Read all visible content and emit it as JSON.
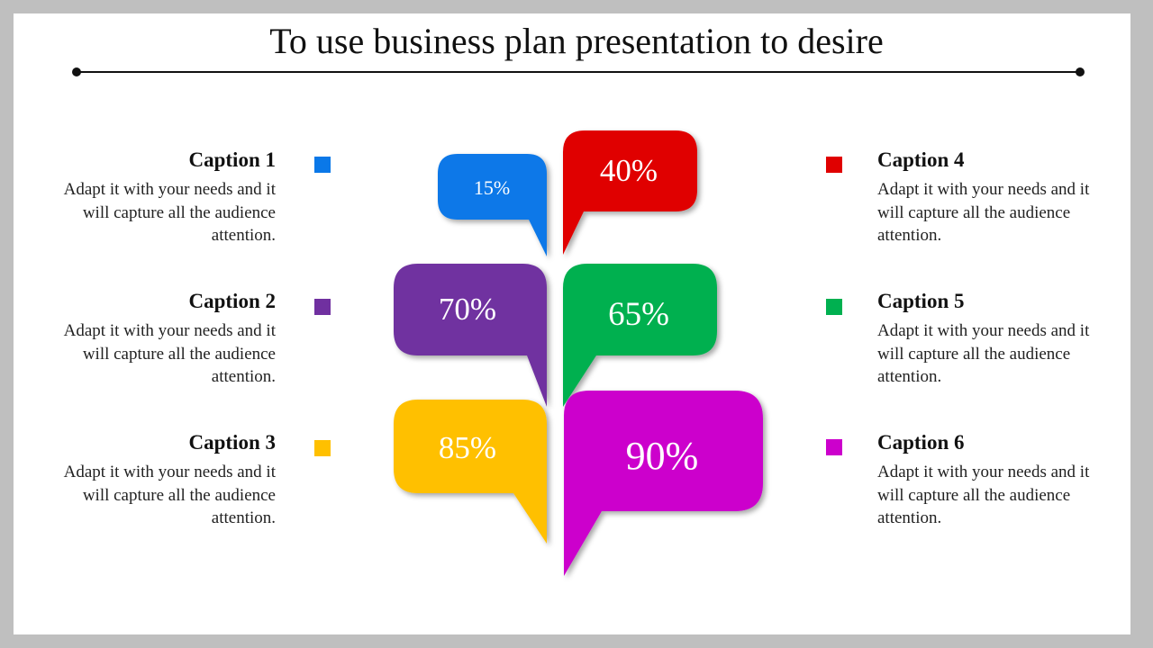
{
  "title": "To use business plan presentation to desire",
  "captions": [
    {
      "heading": "Caption 1",
      "text": "Adapt it with your needs and it will capture all the audience attention.",
      "color": "#0a78e8"
    },
    {
      "heading": "Caption 2",
      "text": "Adapt it with your needs and it will capture all the audience attention.",
      "color": "#7030a0"
    },
    {
      "heading": "Caption 3",
      "text": "Adapt it with your needs and it will capture all the audience attention.",
      "color": "#ffc000"
    },
    {
      "heading": "Caption 4",
      "text": "Adapt it with your needs and it will capture all the audience attention.",
      "color": "#e00000"
    },
    {
      "heading": "Caption 5",
      "text": "Adapt it with your needs and it will capture all the audience attention.",
      "color": "#00b050"
    },
    {
      "heading": "Caption 6",
      "text": "Adapt it with your needs and it will capture all the audience attention.",
      "color": "#cc00cc"
    }
  ],
  "bubbles": [
    {
      "label": "15%",
      "color": "#0a78e8"
    },
    {
      "label": "40%",
      "color": "#e00000"
    },
    {
      "label": "70%",
      "color": "#7030a0"
    },
    {
      "label": "65%",
      "color": "#00b050"
    },
    {
      "label": "85%",
      "color": "#ffc000"
    },
    {
      "label": "90%",
      "color": "#cc00cc"
    }
  ]
}
